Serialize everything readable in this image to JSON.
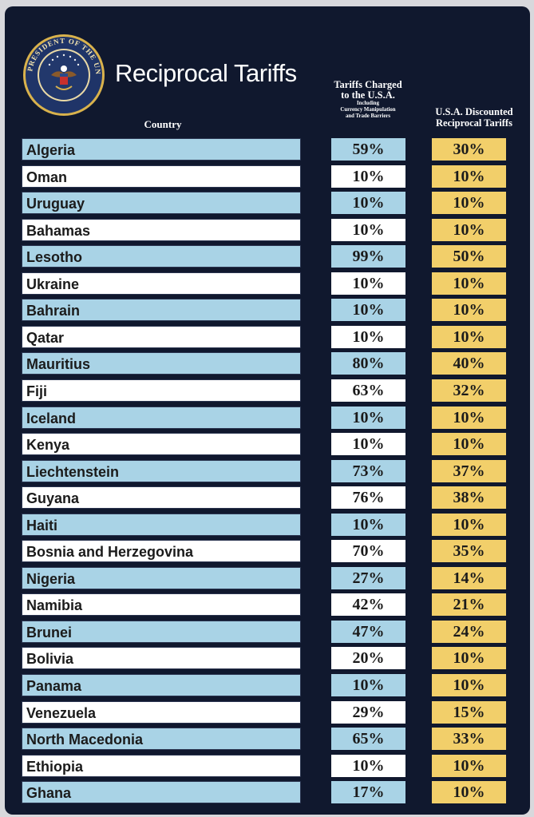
{
  "title": "Reciprocal Tariffs",
  "seal": {
    "text_top": "SEAL OF THE PRESIDENT OF THE UNITED STATES",
    "colors": {
      "navy": "#1f3468",
      "gold": "#d9b24c"
    }
  },
  "headers": {
    "country": "Country",
    "charged_line1": "Tariffs Charged",
    "charged_line2": "to the U.S.A.",
    "charged_sub1": "Including",
    "charged_sub2": "Currency Manipulation",
    "charged_sub3": "and Trade Barriers",
    "reciprocal_line1": "U.S.A. Discounted",
    "reciprocal_line2": "Reciprocal Tariffs"
  },
  "colors": {
    "background": "#10182e",
    "row_blue": "#a9d3e6",
    "row_white": "#ffffff",
    "reciprocal_cell": "#f2cf6a"
  },
  "rows": [
    {
      "country": "Algeria",
      "charged": "59%",
      "reciprocal": "30%"
    },
    {
      "country": "Oman",
      "charged": "10%",
      "reciprocal": "10%"
    },
    {
      "country": "Uruguay",
      "charged": "10%",
      "reciprocal": "10%"
    },
    {
      "country": "Bahamas",
      "charged": "10%",
      "reciprocal": "10%"
    },
    {
      "country": "Lesotho",
      "charged": "99%",
      "reciprocal": "50%"
    },
    {
      "country": "Ukraine",
      "charged": "10%",
      "reciprocal": "10%"
    },
    {
      "country": "Bahrain",
      "charged": "10%",
      "reciprocal": "10%"
    },
    {
      "country": "Qatar",
      "charged": "10%",
      "reciprocal": "10%"
    },
    {
      "country": "Mauritius",
      "charged": "80%",
      "reciprocal": "40%"
    },
    {
      "country": "Fiji",
      "charged": "63%",
      "reciprocal": "32%"
    },
    {
      "country": "Iceland",
      "charged": "10%",
      "reciprocal": "10%"
    },
    {
      "country": "Kenya",
      "charged": "10%",
      "reciprocal": "10%"
    },
    {
      "country": "Liechtenstein",
      "charged": "73%",
      "reciprocal": "37%"
    },
    {
      "country": "Guyana",
      "charged": "76%",
      "reciprocal": "38%"
    },
    {
      "country": "Haiti",
      "charged": "10%",
      "reciprocal": "10%"
    },
    {
      "country": "Bosnia and Herzegovina",
      "charged": "70%",
      "reciprocal": "35%"
    },
    {
      "country": "Nigeria",
      "charged": "27%",
      "reciprocal": "14%"
    },
    {
      "country": "Namibia",
      "charged": "42%",
      "reciprocal": "21%"
    },
    {
      "country": "Brunei",
      "charged": "47%",
      "reciprocal": "24%"
    },
    {
      "country": "Bolivia",
      "charged": "20%",
      "reciprocal": "10%"
    },
    {
      "country": "Panama",
      "charged": "10%",
      "reciprocal": "10%"
    },
    {
      "country": "Venezuela",
      "charged": "29%",
      "reciprocal": "15%"
    },
    {
      "country": "North Macedonia",
      "charged": "65%",
      "reciprocal": "33%"
    },
    {
      "country": "Ethiopia",
      "charged": "10%",
      "reciprocal": "10%"
    },
    {
      "country": "Ghana",
      "charged": "17%",
      "reciprocal": "10%"
    }
  ]
}
